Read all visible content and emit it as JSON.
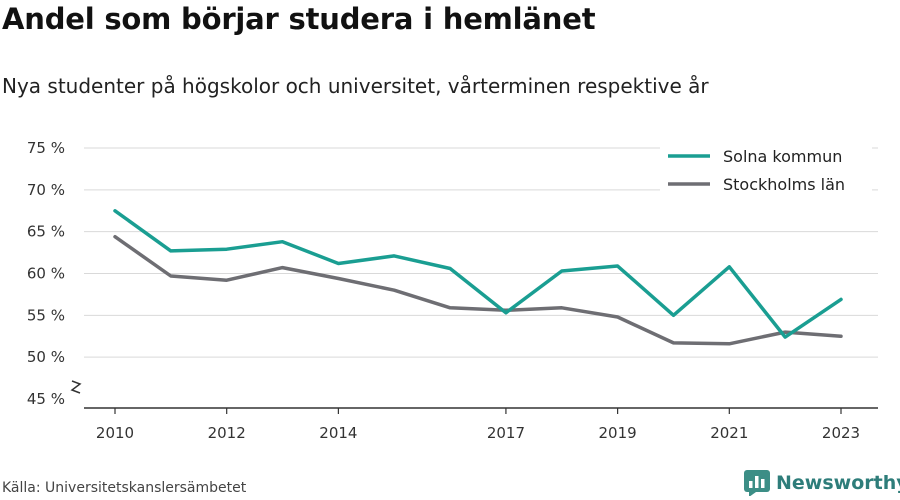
{
  "title": "Andel som börjar studera i hemlänet",
  "subtitle": "Nya studenter på högskolor och universitet, vårterminen respektive år",
  "source": "Källa: Universitetskanslersämbetet",
  "brand": {
    "name": "Newsworthy",
    "icon": "bar-chart-logo-icon",
    "color": "#2e7d7a"
  },
  "chart_data": {
    "type": "line",
    "x": [
      2010,
      2011,
      2012,
      2013,
      2014,
      2015,
      2016,
      2017,
      2018,
      2019,
      2020,
      2021,
      2022,
      2023
    ],
    "x_tick_labels": [
      "2010",
      "2012",
      "2014",
      "2017",
      "2019",
      "2021",
      "2023"
    ],
    "y_tick_labels": [
      "45 %",
      "50 %",
      "55 %",
      "60 %",
      "65 %",
      "70 %",
      "75 %"
    ],
    "ylim": [
      45,
      75
    ],
    "y_axis_break": true,
    "grid": true,
    "legend_position": "top-right",
    "series": [
      {
        "name": "Solna kommun",
        "color": "#1a9e92",
        "values": [
          67.5,
          62.7,
          62.9,
          63.8,
          61.2,
          62.1,
          60.6,
          55.3,
          60.3,
          60.9,
          55.0,
          60.8,
          52.4,
          56.9
        ]
      },
      {
        "name": "Stockholms län",
        "color": "#6e6e73",
        "values": [
          64.4,
          59.7,
          59.2,
          60.7,
          59.4,
          58.0,
          55.9,
          55.6,
          55.9,
          54.8,
          51.7,
          51.6,
          53.0,
          52.5
        ]
      }
    ]
  }
}
